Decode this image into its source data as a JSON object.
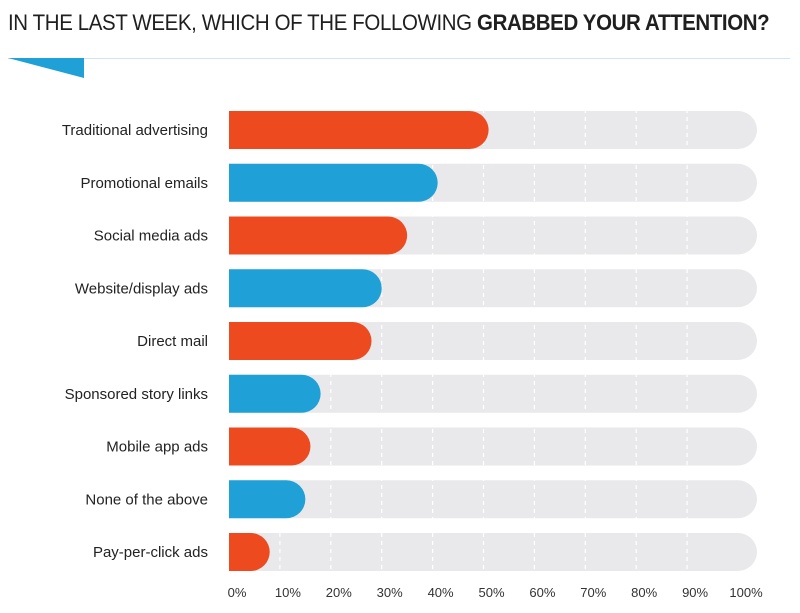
{
  "header": {
    "title_part1": "IN THE LAST WEEK, WHICH OF THE FOLLOWING ",
    "title_part2": "GRABBED YOUR ATTENTION?"
  },
  "colors": {
    "orange": "#ee4a1f",
    "blue": "#1fa0d6",
    "track": "#e9e9eb",
    "grid": "#ffffff"
  },
  "chart_data": {
    "type": "bar",
    "orientation": "horizontal",
    "title": "IN THE LAST WEEK, WHICH OF THE FOLLOWING GRABBED YOUR ATTENTION?",
    "categories": [
      "Traditional advertising",
      "Promotional emails",
      "Social media ads",
      "Website/display ads",
      "Direct mail",
      "Sponsored story links",
      "Mobile app ads",
      "None of the above",
      "Pay-per-click ads"
    ],
    "values": [
      51,
      41,
      35,
      30,
      28,
      18,
      16,
      15,
      8
    ],
    "bar_colors": [
      "orange",
      "blue",
      "orange",
      "blue",
      "orange",
      "blue",
      "orange",
      "blue",
      "orange"
    ],
    "xlim": [
      0,
      100
    ],
    "xticks": [
      "0%",
      "10%",
      "20%",
      "30%",
      "40%",
      "50%",
      "60%",
      "70%",
      "80%",
      "90%",
      "100%"
    ],
    "grid": true
  }
}
